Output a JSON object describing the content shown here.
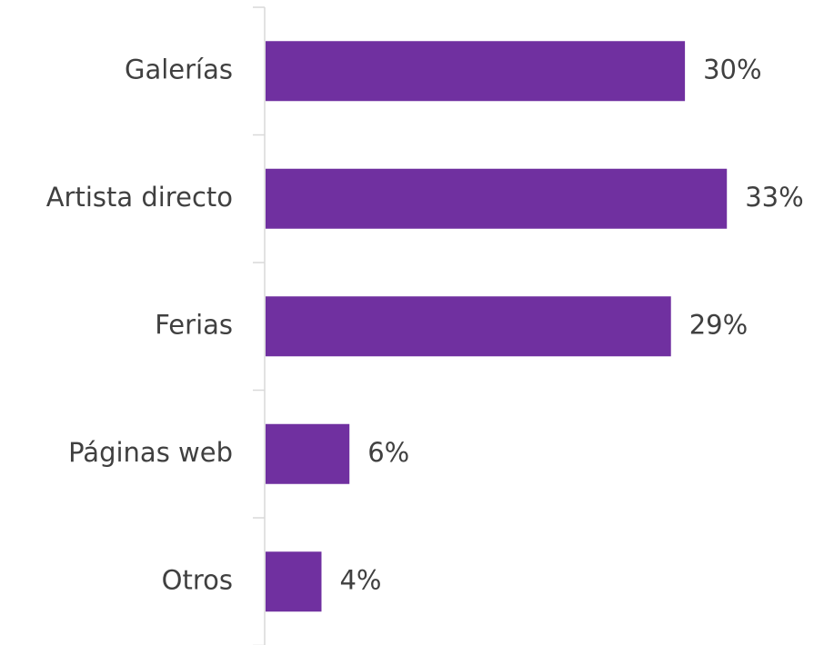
{
  "chart_data": {
    "type": "bar",
    "orientation": "horizontal",
    "categories": [
      "Galerías",
      "Artista directo",
      "Ferias",
      "Páginas web",
      "Otros"
    ],
    "values": [
      30,
      33,
      29,
      6,
      4
    ],
    "value_labels": [
      "30%",
      "33%",
      "29%",
      "6%",
      "4%"
    ],
    "color": "#7030a0"
  }
}
